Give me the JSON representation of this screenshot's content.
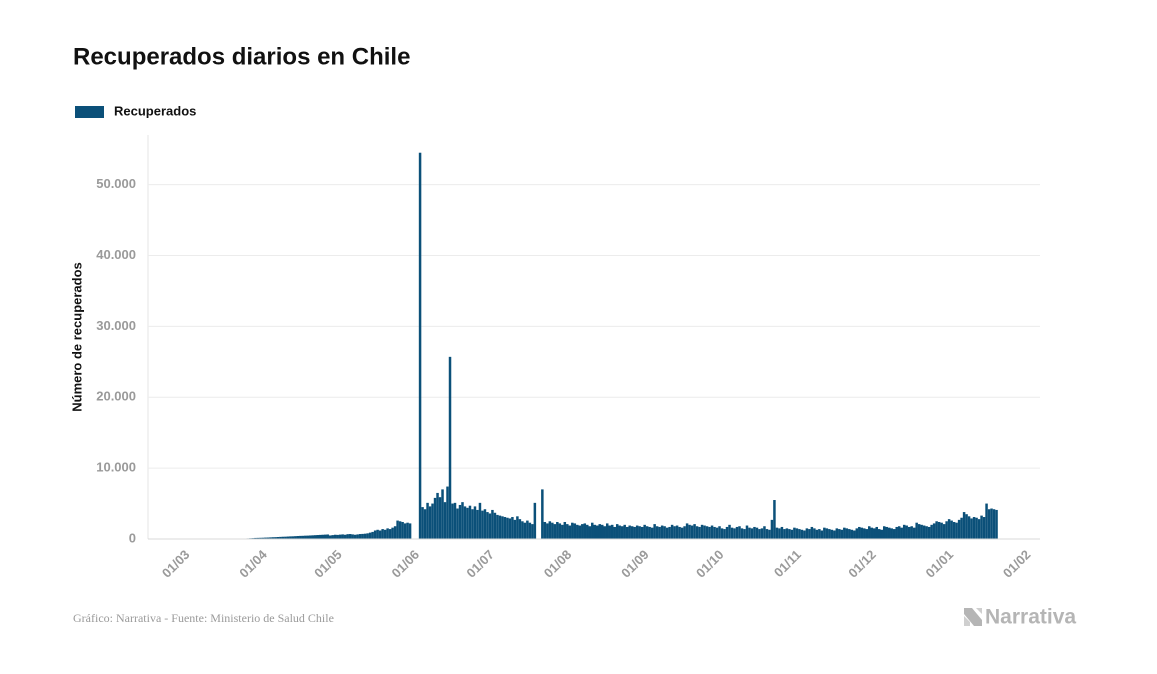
{
  "chart_data": {
    "type": "bar",
    "title": "Recuperados diarios en Chile",
    "y_label": "Número de recuperados",
    "source": "Gráfico: Narrativa - Fuente: Ministerio de Salud Chile",
    "logo": "Narrativa",
    "ylim": [
      0,
      57000
    ],
    "yticks": [
      0,
      {
        "value": 10000,
        "label": "10.000"
      },
      {
        "value": 20000,
        "label": "20.000"
      },
      {
        "value": 30000,
        "label": "30.000"
      },
      {
        "value": 40000,
        "label": "40.000"
      },
      {
        "value": 50000,
        "label": "50.000"
      }
    ],
    "grid": true,
    "legend": "top-left",
    "categories": [
      "01/03",
      null,
      null,
      null,
      null,
      null,
      null,
      null,
      null,
      null,
      null,
      null,
      null,
      null,
      null,
      null,
      null,
      null,
      null,
      null,
      null,
      null,
      null,
      null,
      null,
      null,
      null,
      null,
      null,
      null,
      null,
      "01/04",
      null,
      null,
      null,
      null,
      null,
      null,
      null,
      null,
      null,
      null,
      null,
      null,
      null,
      null,
      null,
      null,
      null,
      null,
      null,
      null,
      null,
      null,
      null,
      null,
      null,
      null,
      null,
      null,
      null,
      "01/05",
      null,
      null,
      null,
      null,
      null,
      null,
      null,
      null,
      null,
      null,
      null,
      null,
      null,
      null,
      null,
      null,
      null,
      null,
      null,
      null,
      null,
      null,
      null,
      null,
      null,
      null,
      null,
      null,
      null,
      null,
      "01/06",
      null,
      null,
      null,
      null,
      null,
      null,
      null,
      null,
      null,
      null,
      null,
      null,
      null,
      null,
      null,
      null,
      null,
      null,
      null,
      null,
      null,
      null,
      null,
      null,
      null,
      null,
      null,
      null,
      null,
      "01/07",
      null,
      null,
      null,
      null,
      null,
      null,
      null,
      null,
      null,
      null,
      null,
      null,
      null,
      null,
      null,
      null,
      null,
      null,
      null,
      null,
      null,
      null,
      null,
      null,
      null,
      null,
      null,
      null,
      null,
      null,
      "01/08",
      null,
      null,
      null,
      null,
      null,
      null,
      null,
      null,
      null,
      null,
      null,
      null,
      null,
      null,
      null,
      null,
      null,
      null,
      null,
      null,
      null,
      null,
      null,
      null,
      null,
      null,
      null,
      null,
      null,
      null,
      "01/09",
      null,
      null,
      null,
      null,
      null,
      null,
      null,
      null,
      null,
      null,
      null,
      null,
      null,
      null,
      null,
      null,
      null,
      null,
      null,
      null,
      null,
      null,
      null,
      null,
      null,
      null,
      null,
      null,
      null,
      "01/10",
      null,
      null,
      null,
      null,
      null,
      null,
      null,
      null,
      null,
      null,
      null,
      null,
      null,
      null,
      null,
      null,
      null,
      null,
      null,
      null,
      null,
      null,
      null,
      null,
      null,
      null,
      null,
      null,
      null,
      null,
      "01/11",
      null,
      null,
      null,
      null,
      null,
      null,
      null,
      null,
      null,
      null,
      null,
      null,
      null,
      null,
      null,
      null,
      null,
      null,
      null,
      null,
      null,
      null,
      null,
      null,
      null,
      null,
      null,
      null,
      null,
      "01/12",
      null,
      null,
      null,
      null,
      null,
      null,
      null,
      null,
      null,
      null,
      null,
      null,
      null,
      null,
      null,
      null,
      null,
      null,
      null,
      null,
      null,
      null,
      null,
      null,
      null,
      null,
      null,
      null,
      null,
      null,
      "01/01",
      null,
      null,
      null,
      null,
      null,
      null,
      null,
      null,
      null,
      null,
      null,
      null,
      null,
      null,
      null,
      null,
      null,
      null,
      null,
      null,
      null,
      null,
      null,
      null,
      null,
      null,
      null,
      null,
      null,
      null,
      "01/02"
    ],
    "series": [
      {
        "name": "Recuperados",
        "color": "#0b5079",
        "values": [
          0,
          0,
          0,
          0,
          0,
          0,
          0,
          0,
          0,
          0,
          0,
          0,
          0,
          0,
          0,
          1,
          2,
          3,
          5,
          8,
          10,
          15,
          20,
          25,
          30,
          40,
          50,
          60,
          80,
          100,
          120,
          150,
          160,
          170,
          180,
          200,
          210,
          230,
          250,
          260,
          280,
          300,
          320,
          330,
          350,
          370,
          380,
          400,
          420,
          440,
          450,
          470,
          480,
          500,
          520,
          540,
          560,
          580,
          600,
          620,
          640,
          500,
          550,
          600,
          580,
          620,
          650,
          600,
          680,
          700,
          650,
          600,
          650,
          700,
          720,
          750,
          800,
          900,
          1000,
          1200,
          1300,
          1200,
          1400,
          1300,
          1500,
          1400,
          1600,
          1800,
          2600,
          2500,
          2400,
          2200,
          2300,
          2200,
          null,
          null,
          null,
          54500,
          4500,
          4200,
          5100,
          4600,
          5000,
          5800,
          6500,
          5900,
          7000,
          5200,
          7400,
          25700,
          5000,
          5100,
          4300,
          4800,
          5200,
          4600,
          4400,
          4700,
          4200,
          4600,
          4100,
          5100,
          4000,
          4200,
          3800,
          3600,
          4100,
          3700,
          3400,
          3300,
          3200,
          3100,
          3000,
          2900,
          3100,
          2700,
          3200,
          2800,
          2500,
          2300,
          2600,
          2300,
          2100,
          5100,
          null,
          null,
          7000,
          2400,
          2200,
          2500,
          2300,
          2100,
          2400,
          2200,
          2000,
          2400,
          2100,
          1900,
          2300,
          2200,
          2000,
          1900,
          2100,
          2200,
          2000,
          1800,
          2300,
          2000,
          1900,
          2100,
          2000,
          1800,
          2200,
          1900,
          2000,
          1700,
          2100,
          1900,
          1800,
          2000,
          1700,
          1900,
          1800,
          1700,
          1900,
          1800,
          1700,
          2000,
          1800,
          1700,
          1600,
          2100,
          1800,
          1700,
          1900,
          1800,
          1600,
          1700,
          2000,
          1800,
          1900,
          1700,
          1600,
          1800,
          2200,
          2000,
          1900,
          2100,
          1800,
          1700,
          2000,
          1900,
          1800,
          1700,
          1900,
          1700,
          1600,
          1800,
          1500,
          1400,
          1700,
          2000,
          1600,
          1500,
          1700,
          1800,
          1500,
          1400,
          1900,
          1600,
          1500,
          1700,
          1600,
          1400,
          1500,
          1800,
          1400,
          1300,
          2700,
          5500,
          1600,
          1500,
          1700,
          1400,
          1500,
          1400,
          1300,
          1600,
          1500,
          1400,
          1300,
          1200,
          1500,
          1400,
          1700,
          1500,
          1300,
          1400,
          1200,
          1600,
          1500,
          1400,
          1300,
          1200,
          1500,
          1400,
          1300,
          1600,
          1500,
          1400,
          1300,
          1200,
          1500,
          1700,
          1600,
          1500,
          1400,
          1800,
          1600,
          1500,
          1700,
          1400,
          1300,
          1800,
          1700,
          1600,
          1500,
          1400,
          1700,
          1800,
          1600,
          2000,
          1900,
          1700,
          1800,
          1600,
          2300,
          2100,
          2000,
          1900,
          1800,
          1700,
          2000,
          2200,
          2500,
          2400,
          2300,
          2100,
          2500,
          2800,
          2600,
          2400,
          2300,
          2700,
          3000,
          3800,
          3500,
          3200,
          2900,
          3100,
          3000,
          2800,
          3300,
          3100,
          5000,
          4200,
          4300,
          4200,
          4100,
          null,
          null,
          null,
          null,
          null,
          null,
          null,
          null,
          null
        ]
      }
    ]
  }
}
